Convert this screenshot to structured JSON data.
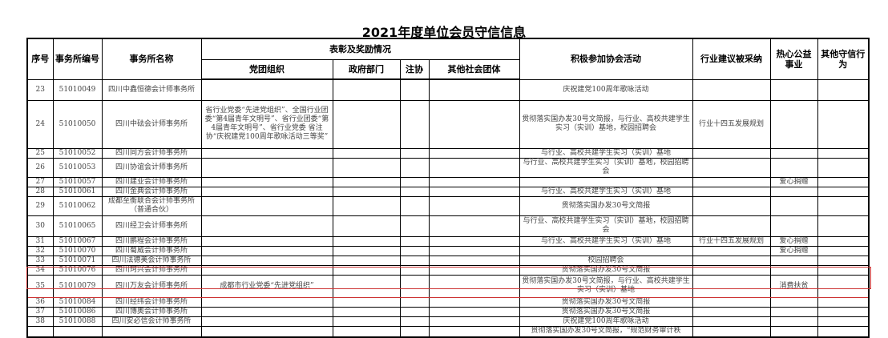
{
  "title": "2021年度单位会员守信信息",
  "headers": {
    "seq": "序号",
    "code": "事务所编号",
    "name": "事务所名称",
    "awards": "表彰及奖励情况",
    "party": "党团组织",
    "gov": "政府部门",
    "cicpa": "注协",
    "other_org": "其他社会团体",
    "activities": "积极参加协会活动",
    "suggestions": "行业建议被采纳",
    "charity": "热心公益事业",
    "other": "其他守信行为"
  },
  "highlight_color": "#cc3333",
  "rows": [
    {
      "seq": "23",
      "code": "51010049",
      "name": "四川中鑫恒德会计师事务所",
      "party": "",
      "gov": "",
      "cicpa": "",
      "other_org": "",
      "activities": "庆祝建党100周年歌咏活动",
      "suggestions": "",
      "charity": "",
      "other": ""
    },
    {
      "seq": "24",
      "code": "51010050",
      "name": "四川中砝会计师事务所",
      "party": "省行业党委“先进党组织”、全国行业团委“第4届青年文明号”、省行业团委“第4届青年文明号”、省行业党委 省注协“庆祝建党100周年歌咏活动三等奖”",
      "gov": "",
      "cicpa": "",
      "other_org": "",
      "activities": "贯彻落实国办发30号文简报，与行业、高校共建学生实习（实训）基地，校园招聘会",
      "suggestions": "行业十四五发展规划",
      "charity": "",
      "other": ""
    },
    {
      "seq": "25",
      "code": "51010052",
      "name": "四川同方会计师事务所",
      "party": "",
      "gov": "",
      "cicpa": "",
      "other_org": "",
      "activities": "与行业、高校共建学生实习（实训）基地",
      "suggestions": "",
      "charity": "",
      "other": ""
    },
    {
      "seq": "26",
      "code": "51010053",
      "name": "四川协谊会计师事务所",
      "party": "",
      "gov": "",
      "cicpa": "",
      "other_org": "",
      "activities": "与行业、高校共建学生实习（实训）基地，校园招聘会",
      "suggestions": "",
      "charity": "",
      "other": ""
    },
    {
      "seq": "27",
      "code": "51010057",
      "name": "四川建业会计师事务所",
      "party": "",
      "gov": "",
      "cicpa": "",
      "other_org": "",
      "activities": "",
      "suggestions": "",
      "charity": "爱心捐赠",
      "other": ""
    },
    {
      "seq": "28",
      "code": "51010061",
      "name": "四川金典会计师事务所",
      "party": "",
      "gov": "",
      "cicpa": "",
      "other_org": "",
      "activities": "与行业、高校共建学生实习（实训）基地",
      "suggestions": "",
      "charity": "",
      "other": ""
    },
    {
      "seq": "29",
      "code": "51010062",
      "name": "成都至衡联合会计师事务所（普通合伙）",
      "party": "",
      "gov": "",
      "cicpa": "",
      "other_org": "",
      "activities": "贯彻落实国办发30号文简报",
      "suggestions": "",
      "charity": "",
      "other": ""
    },
    {
      "seq": "30",
      "code": "51010065",
      "name": "四川经卫会计师事务所",
      "party": "",
      "gov": "",
      "cicpa": "",
      "other_org": "",
      "activities": "与行业、高校共建学生实习（实训）基地，校园招聘会",
      "suggestions": "",
      "charity": "",
      "other": ""
    },
    {
      "seq": "31",
      "code": "51010067",
      "name": "四川鹏程会计师事务所",
      "party": "",
      "gov": "",
      "cicpa": "",
      "other_org": "",
      "activities": "与行业、高校共建学生实习（实训）基地",
      "suggestions": "行业十四五发展规划",
      "charity": "爱心捐赠",
      "other": ""
    },
    {
      "seq": "32",
      "code": "51010070",
      "name": "四川蜀威会计师事务所",
      "party": "",
      "gov": "",
      "cicpa": "",
      "other_org": "",
      "activities": "",
      "suggestions": "",
      "charity": "爱心捐赠",
      "other": ""
    },
    {
      "seq": "33",
      "code": "51010071",
      "name": "四川法德美会计师事务所",
      "party": "",
      "gov": "",
      "cicpa": "",
      "other_org": "",
      "activities": "校园招聘会",
      "suggestions": "",
      "charity": "",
      "other": ""
    },
    {
      "seq": "34",
      "code": "51010076",
      "name": "四川珂兴会计师事务所",
      "party": "",
      "gov": "",
      "cicpa": "",
      "other_org": "",
      "activities": "贯彻落实国办发30号文简报",
      "suggestions": "",
      "charity": "",
      "other": ""
    },
    {
      "seq": "35",
      "code": "51010079",
      "name": "四川万友会计师事务所",
      "party": "成都市行业党委“先进党组织”",
      "gov": "",
      "cicpa": "",
      "other_org": "",
      "activities": "贯彻落实国办发30号文简报，与行业、高校共建学生实习（实训）基地",
      "suggestions": "",
      "charity": "消费扶贫",
      "other": ""
    },
    {
      "seq": "36",
      "code": "51010084",
      "name": "四川经纬会计师事务所",
      "party": "",
      "gov": "",
      "cicpa": "",
      "other_org": "",
      "activities": "贯彻落实国办发30号文简报",
      "suggestions": "",
      "charity": "",
      "other": ""
    },
    {
      "seq": "37",
      "code": "51010086",
      "name": "四川博奥会计师事务所",
      "party": "",
      "gov": "",
      "cicpa": "",
      "other_org": "",
      "activities": "贯彻落实国办发30号文简报",
      "suggestions": "",
      "charity": "",
      "other": ""
    },
    {
      "seq": "38",
      "code": "51010088",
      "name": "四川安必信会计师事务所",
      "party": "",
      "gov": "",
      "cicpa": "",
      "other_org": "",
      "activities": "庆祝建党100周年歌咏活动",
      "suggestions": "",
      "charity": "",
      "other": ""
    },
    {
      "seq": "",
      "code": "",
      "name": "",
      "party": "",
      "gov": "",
      "cicpa": "",
      "other_org": "",
      "activities": "贯彻落实国办发30号文简报，“规范财务审计秩",
      "suggestions": "",
      "charity": "",
      "other": ""
    }
  ]
}
